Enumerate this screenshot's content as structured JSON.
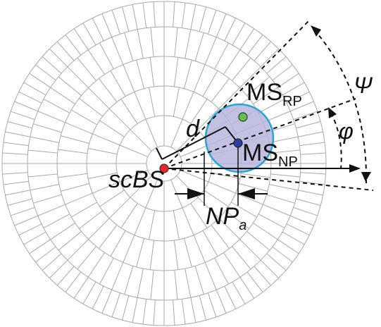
{
  "diagram": {
    "labels": {
      "base_station": "scBS",
      "ms_rp_main": "MS",
      "ms_rp_sub": "RP",
      "ms_np_main": "MS",
      "ms_np_sub": "NP",
      "distance": "d",
      "np_main": "NP",
      "np_sub": "a",
      "angle_psi": "Ψ",
      "angle_phi": "φ"
    },
    "colors": {
      "grid": "#a9a9a9",
      "circle_fill": "#b9b6dc",
      "circle_stroke": "#2aa3d8",
      "bs_dot": "#e8262a",
      "rp_dot": "#5fc24a",
      "np_dot": "#2a3f9e",
      "ink": "#111111"
    }
  }
}
